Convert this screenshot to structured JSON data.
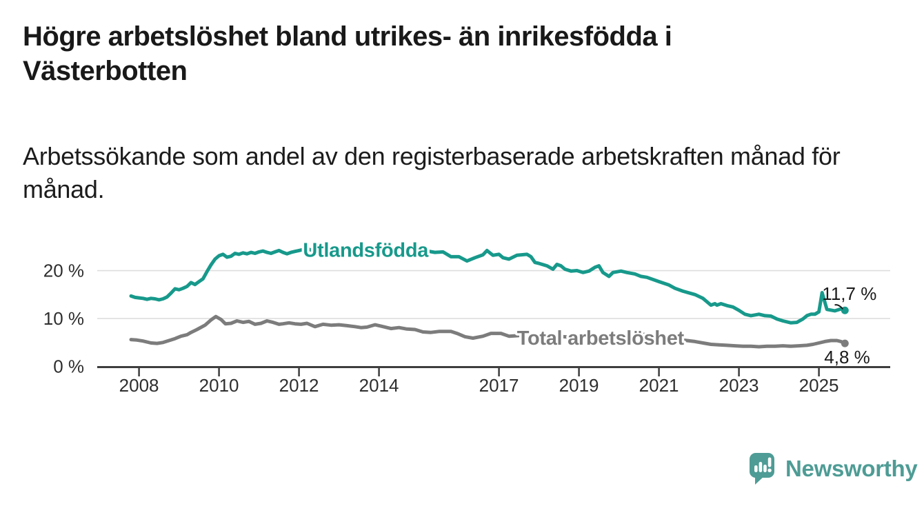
{
  "header": {
    "title_line1": "Högre arbetslöshet bland utrikes- än inrikesfödda i",
    "title_line2": "Västerbotten",
    "subtitle_line1": "Arbetssökande som andel av den registerbaserade arbetskraften månad för",
    "subtitle_line2": "månad."
  },
  "footer": {
    "brand": "Newsworthy",
    "logo_icon": "speech-bubble-bar-chart-icon",
    "brand_color": "#4e9c95"
  },
  "chart_data": {
    "type": "line",
    "title": "Högre arbetslöshet bland utrikes- än inrikesfödda i Västerbotten",
    "subtitle": "Arbetssökande som andel av den registerbaserade arbetskraften månad för månad.",
    "xlabel": "",
    "ylabel": "",
    "grid": "horizontal",
    "legend_position": "inline-labels",
    "colors": {
      "axis": "#3d3d3d",
      "gridline": "#dedede",
      "tick_label": "#2e2e2e",
      "annotation_text": "#1a1a1a",
      "background": "#ffffff"
    },
    "x_axis": {
      "range": [
        2007.0,
        2026.8
      ],
      "ticks": [
        2008,
        2010,
        2012,
        2014,
        2017,
        2019,
        2021,
        2023,
        2025
      ],
      "tick_labels": [
        "2008",
        "2010",
        "2012",
        "2014",
        "2017",
        "2019",
        "2021",
        "2023",
        "2025"
      ]
    },
    "y_axis": {
      "range": [
        0,
        27.5
      ],
      "unit": "%",
      "ticks": [
        0,
        10,
        20
      ],
      "tick_labels": [
        "0 %",
        "10 %",
        "20 %"
      ]
    },
    "series": [
      {
        "name": "Utlandsfödda",
        "color": "#17998b",
        "end_value": 11.7,
        "end_value_label": "11,7 %",
        "annotation": "above",
        "label_anchor": {
          "x": 2012.1,
          "y": 24.3
        },
        "points": [
          [
            2007.8,
            14.7
          ],
          [
            2007.9,
            14.4
          ],
          [
            2008.0,
            14.3
          ],
          [
            2008.1,
            14.2
          ],
          [
            2008.2,
            14.0
          ],
          [
            2008.3,
            14.2
          ],
          [
            2008.4,
            14.1
          ],
          [
            2008.5,
            13.9
          ],
          [
            2008.6,
            14.1
          ],
          [
            2008.7,
            14.5
          ],
          [
            2008.8,
            15.3
          ],
          [
            2008.9,
            16.2
          ],
          [
            2009.0,
            16.0
          ],
          [
            2009.1,
            16.3
          ],
          [
            2009.2,
            16.7
          ],
          [
            2009.3,
            17.5
          ],
          [
            2009.4,
            17.1
          ],
          [
            2009.5,
            17.7
          ],
          [
            2009.6,
            18.3
          ],
          [
            2009.7,
            19.8
          ],
          [
            2009.8,
            21.2
          ],
          [
            2009.9,
            22.4
          ],
          [
            2010.0,
            23.1
          ],
          [
            2010.1,
            23.4
          ],
          [
            2010.2,
            22.8
          ],
          [
            2010.3,
            23.0
          ],
          [
            2010.4,
            23.6
          ],
          [
            2010.5,
            23.4
          ],
          [
            2010.6,
            23.7
          ],
          [
            2010.7,
            23.5
          ],
          [
            2010.8,
            23.8
          ],
          [
            2010.9,
            23.6
          ],
          [
            2011.0,
            23.9
          ],
          [
            2011.1,
            24.1
          ],
          [
            2011.2,
            23.8
          ],
          [
            2011.3,
            23.6
          ],
          [
            2011.4,
            23.9
          ],
          [
            2011.5,
            24.2
          ],
          [
            2011.6,
            23.8
          ],
          [
            2011.7,
            23.5
          ],
          [
            2011.8,
            23.8
          ],
          [
            2011.9,
            24.0
          ],
          [
            2012.0,
            24.2
          ],
          [
            2012.1,
            24.4
          ],
          [
            2012.2,
            24.6
          ],
          [
            2012.3,
            24.3
          ],
          [
            2012.4,
            24.0
          ],
          [
            2012.5,
            24.2
          ],
          [
            2012.6,
            24.4
          ],
          [
            2012.7,
            24.1
          ],
          [
            2012.8,
            23.9
          ],
          [
            2012.9,
            24.1
          ],
          [
            2013.0,
            24.2
          ],
          [
            2013.1,
            24.4
          ],
          [
            2013.2,
            24.1
          ],
          [
            2013.3,
            23.9
          ],
          [
            2013.5,
            24.2
          ],
          [
            2013.7,
            23.9
          ],
          [
            2013.9,
            24.2
          ],
          [
            2014.0,
            24.0
          ],
          [
            2014.2,
            24.3
          ],
          [
            2014.4,
            23.9
          ],
          [
            2014.6,
            24.1
          ],
          [
            2014.8,
            23.8
          ],
          [
            2015.0,
            23.9
          ],
          [
            2015.2,
            24.1
          ],
          [
            2015.4,
            23.8
          ],
          [
            2015.6,
            23.9
          ],
          [
            2015.8,
            22.9
          ],
          [
            2016.0,
            22.9
          ],
          [
            2016.2,
            22.0
          ],
          [
            2016.4,
            22.7
          ],
          [
            2016.6,
            23.3
          ],
          [
            2016.7,
            24.2
          ],
          [
            2016.85,
            23.2
          ],
          [
            2017.0,
            23.4
          ],
          [
            2017.1,
            22.7
          ],
          [
            2017.25,
            22.4
          ],
          [
            2017.45,
            23.2
          ],
          [
            2017.7,
            23.4
          ],
          [
            2017.8,
            22.9
          ],
          [
            2017.9,
            21.7
          ],
          [
            2018.0,
            21.5
          ],
          [
            2018.2,
            21.0
          ],
          [
            2018.35,
            20.3
          ],
          [
            2018.45,
            21.3
          ],
          [
            2018.55,
            21.0
          ],
          [
            2018.65,
            20.3
          ],
          [
            2018.8,
            19.9
          ],
          [
            2018.95,
            20.0
          ],
          [
            2019.1,
            19.6
          ],
          [
            2019.25,
            19.9
          ],
          [
            2019.4,
            20.7
          ],
          [
            2019.5,
            21.0
          ],
          [
            2019.6,
            19.6
          ],
          [
            2019.75,
            18.8
          ],
          [
            2019.85,
            19.6
          ],
          [
            2020.05,
            19.9
          ],
          [
            2020.2,
            19.6
          ],
          [
            2020.4,
            19.3
          ],
          [
            2020.55,
            18.8
          ],
          [
            2020.7,
            18.6
          ],
          [
            2021.0,
            17.7
          ],
          [
            2021.25,
            17.0
          ],
          [
            2021.4,
            16.3
          ],
          [
            2021.6,
            15.7
          ],
          [
            2021.9,
            15.0
          ],
          [
            2022.1,
            14.2
          ],
          [
            2022.3,
            12.8
          ],
          [
            2022.4,
            13.1
          ],
          [
            2022.45,
            12.8
          ],
          [
            2022.55,
            13.1
          ],
          [
            2022.7,
            12.7
          ],
          [
            2022.85,
            12.4
          ],
          [
            2023.0,
            11.7
          ],
          [
            2023.15,
            10.9
          ],
          [
            2023.3,
            10.6
          ],
          [
            2023.5,
            10.9
          ],
          [
            2023.65,
            10.6
          ],
          [
            2023.8,
            10.5
          ],
          [
            2023.95,
            9.9
          ],
          [
            2024.1,
            9.5
          ],
          [
            2024.3,
            9.1
          ],
          [
            2024.45,
            9.2
          ],
          [
            2024.6,
            9.9
          ],
          [
            2024.7,
            10.6
          ],
          [
            2024.8,
            10.9
          ],
          [
            2024.9,
            10.9
          ],
          [
            2025.0,
            11.4
          ],
          [
            2025.08,
            15.4
          ],
          [
            2025.2,
            11.9
          ],
          [
            2025.4,
            11.6
          ],
          [
            2025.55,
            12.0
          ],
          [
            2025.65,
            11.7
          ]
        ]
      },
      {
        "name": "Total arbetslöshet",
        "color": "#7c7c7c",
        "end_value": 4.8,
        "end_value_label": "4,8 %",
        "annotation": "below",
        "label_anchor": {
          "x": 2017.45,
          "y": 6.0
        },
        "points": [
          [
            2007.8,
            5.6
          ],
          [
            2007.95,
            5.5
          ],
          [
            2008.1,
            5.3
          ],
          [
            2008.3,
            4.9
          ],
          [
            2008.45,
            4.8
          ],
          [
            2008.6,
            5.0
          ],
          [
            2008.75,
            5.4
          ],
          [
            2008.9,
            5.8
          ],
          [
            2009.05,
            6.3
          ],
          [
            2009.2,
            6.6
          ],
          [
            2009.3,
            7.1
          ],
          [
            2009.45,
            7.7
          ],
          [
            2009.65,
            8.6
          ],
          [
            2009.8,
            9.7
          ],
          [
            2009.92,
            10.4
          ],
          [
            2010.05,
            9.8
          ],
          [
            2010.16,
            8.9
          ],
          [
            2010.3,
            9.0
          ],
          [
            2010.45,
            9.5
          ],
          [
            2010.6,
            9.2
          ],
          [
            2010.75,
            9.4
          ],
          [
            2010.9,
            8.8
          ],
          [
            2011.05,
            9.0
          ],
          [
            2011.2,
            9.5
          ],
          [
            2011.35,
            9.2
          ],
          [
            2011.5,
            8.8
          ],
          [
            2011.6,
            8.9
          ],
          [
            2011.75,
            9.1
          ],
          [
            2011.9,
            8.9
          ],
          [
            2012.05,
            8.8
          ],
          [
            2012.2,
            9.0
          ],
          [
            2012.4,
            8.3
          ],
          [
            2012.6,
            8.8
          ],
          [
            2012.8,
            8.6
          ],
          [
            2013.0,
            8.7
          ],
          [
            2013.2,
            8.5
          ],
          [
            2013.4,
            8.3
          ],
          [
            2013.55,
            8.1
          ],
          [
            2013.7,
            8.2
          ],
          [
            2013.9,
            8.7
          ],
          [
            2014.05,
            8.4
          ],
          [
            2014.3,
            7.9
          ],
          [
            2014.5,
            8.1
          ],
          [
            2014.7,
            7.8
          ],
          [
            2014.9,
            7.7
          ],
          [
            2015.1,
            7.2
          ],
          [
            2015.3,
            7.1
          ],
          [
            2015.5,
            7.3
          ],
          [
            2015.8,
            7.3
          ],
          [
            2015.95,
            6.9
          ],
          [
            2016.15,
            6.2
          ],
          [
            2016.35,
            5.9
          ],
          [
            2016.6,
            6.3
          ],
          [
            2016.8,
            6.9
          ],
          [
            2017.05,
            6.9
          ],
          [
            2017.25,
            6.3
          ],
          [
            2017.45,
            6.4
          ],
          [
            2017.6,
            6.5
          ],
          [
            2017.8,
            6.6
          ],
          [
            2018.0,
            6.5
          ],
          [
            2018.2,
            6.4
          ],
          [
            2018.4,
            6.3
          ],
          [
            2018.6,
            6.2
          ],
          [
            2018.8,
            6.1
          ],
          [
            2019.0,
            6.1
          ],
          [
            2019.2,
            6.0
          ],
          [
            2019.4,
            5.9
          ],
          [
            2019.6,
            5.8
          ],
          [
            2019.8,
            5.9
          ],
          [
            2020.0,
            6.1
          ],
          [
            2020.2,
            6.6
          ],
          [
            2020.35,
            6.9
          ],
          [
            2020.5,
            6.8
          ],
          [
            2020.7,
            6.6
          ],
          [
            2020.9,
            6.4
          ],
          [
            2021.1,
            6.1
          ],
          [
            2021.3,
            5.9
          ],
          [
            2021.5,
            5.6
          ],
          [
            2021.7,
            5.4
          ],
          [
            2021.9,
            5.2
          ],
          [
            2022.1,
            4.9
          ],
          [
            2022.3,
            4.6
          ],
          [
            2022.5,
            4.5
          ],
          [
            2022.7,
            4.4
          ],
          [
            2022.9,
            4.3
          ],
          [
            2023.1,
            4.2
          ],
          [
            2023.3,
            4.2
          ],
          [
            2023.5,
            4.1
          ],
          [
            2023.7,
            4.2
          ],
          [
            2023.9,
            4.2
          ],
          [
            2024.1,
            4.3
          ],
          [
            2024.3,
            4.2
          ],
          [
            2024.5,
            4.3
          ],
          [
            2024.7,
            4.4
          ],
          [
            2024.85,
            4.6
          ],
          [
            2025.0,
            4.9
          ],
          [
            2025.15,
            5.2
          ],
          [
            2025.3,
            5.4
          ],
          [
            2025.45,
            5.4
          ],
          [
            2025.55,
            5.2
          ],
          [
            2025.65,
            4.8
          ]
        ]
      }
    ]
  }
}
